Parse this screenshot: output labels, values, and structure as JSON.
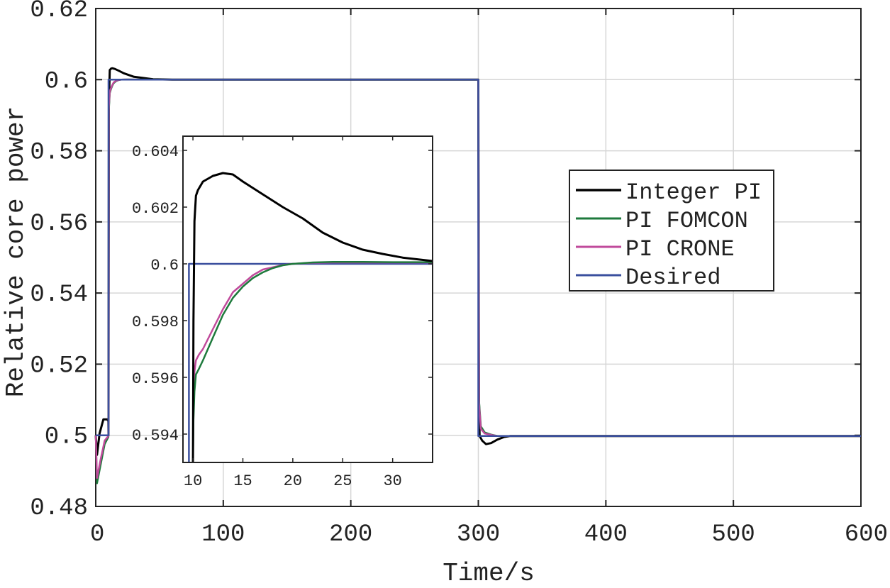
{
  "chart_data": [
    {
      "type": "line",
      "title": "",
      "xlabel": "Time/s",
      "ylabel": "Relative core power",
      "xlim": [
        0,
        600
      ],
      "ylim": [
        0.48,
        0.62
      ],
      "xticks": [
        0,
        100,
        200,
        300,
        400,
        500,
        600
      ],
      "yticks": [
        0.48,
        0.5,
        0.52,
        0.54,
        0.56,
        0.58,
        0.6,
        0.62
      ],
      "xtick_labels": [
        "0",
        "100",
        "200",
        "300",
        "400",
        "500",
        "600"
      ],
      "ytick_labels": [
        "0.48",
        "0.5",
        "0.52",
        "0.54",
        "0.56",
        "0.58",
        "0.6",
        "0.62"
      ],
      "grid": true,
      "legend_position": "right",
      "series": [
        {
          "name": "Integer PI",
          "color": "#000000",
          "x": [
            0,
            1,
            3,
            6,
            9,
            9.9,
            10,
            10.3,
            11,
            12,
            13,
            15,
            18,
            22,
            30,
            45,
            60,
            299.9,
            300,
            300.5,
            301,
            303,
            306,
            310,
            315,
            320,
            325,
            600
          ],
          "y": [
            0.5,
            0.4945,
            0.5005,
            0.5045,
            0.5045,
            0.504,
            0.5,
            0.593,
            0.6027,
            0.6031,
            0.6032,
            0.603,
            0.6025,
            0.6018,
            0.6008,
            0.6001,
            0.6,
            0.6,
            0.6,
            0.51,
            0.4998,
            0.4985,
            0.4975,
            0.4978,
            0.4988,
            0.4995,
            0.4998,
            0.4998
          ]
        },
        {
          "name": "PI FOMCON",
          "color": "#1e7a3c",
          "x": [
            0,
            1,
            4,
            7,
            9.9,
            10,
            10.3,
            11,
            12,
            13,
            14,
            16,
            18,
            20,
            22,
            25,
            30,
            35,
            60,
            299.9,
            300,
            300.5,
            302,
            305,
            310,
            315,
            600
          ],
          "y": [
            0.5,
            0.4865,
            0.492,
            0.4975,
            0.4995,
            0.5,
            0.5915,
            0.5962,
            0.5974,
            0.5983,
            0.599,
            0.5996,
            0.5999,
            0.6,
            0.60004,
            0.60005,
            0.60004,
            0.60003,
            0.6,
            0.6,
            0.6,
            0.51,
            0.5025,
            0.5008,
            0.5002,
            0.4998,
            0.4998
          ]
        },
        {
          "name": "PI CRONE",
          "color": "#c04a9b",
          "x": [
            0,
            1,
            4,
            7,
            9.9,
            10,
            10.3,
            11,
            12,
            13,
            14,
            16,
            18,
            20,
            22,
            25,
            30,
            35,
            60,
            299.9,
            300,
            300.5,
            302,
            305,
            310,
            315,
            600
          ],
          "y": [
            0.5,
            0.488,
            0.4935,
            0.4985,
            0.4998,
            0.5,
            0.5925,
            0.5966,
            0.5977,
            0.5985,
            0.5992,
            0.5997,
            0.5999,
            0.6,
            0.60003,
            0.60004,
            0.60003,
            0.60002,
            0.6,
            0.6,
            0.6,
            0.509,
            0.5018,
            0.5005,
            0.5001,
            0.4998,
            0.4998
          ]
        },
        {
          "name": "Desired",
          "color": "#3a4f9e",
          "x": [
            0,
            10,
            10,
            300,
            300,
            600
          ],
          "y": [
            0.5,
            0.5,
            0.6,
            0.6,
            0.4998,
            0.4998
          ]
        }
      ]
    },
    {
      "type": "line",
      "title": "",
      "xlabel": "",
      "ylabel": "",
      "xlim": [
        9,
        34
      ],
      "ylim": [
        0.593,
        0.6045
      ],
      "xticks": [
        10,
        15,
        20,
        25,
        30
      ],
      "yticks": [
        0.594,
        0.596,
        0.598,
        0.6,
        0.602,
        0.604
      ],
      "xtick_labels": [
        "10",
        "15",
        "20",
        "25",
        "30"
      ],
      "ytick_labels": [
        "0.594",
        "0.596",
        "0.598",
        "0.6",
        "0.602",
        "0.604"
      ],
      "grid": false,
      "series": [
        {
          "name": "Integer PI",
          "color": "#000000",
          "x": [
            10,
            10.05,
            10.15,
            10.3,
            10.5,
            11,
            12,
            13,
            14,
            15,
            17,
            19,
            21,
            23,
            25,
            27,
            29,
            31,
            34
          ],
          "y": [
            0.593,
            0.598,
            0.6015,
            0.6024,
            0.6026,
            0.6029,
            0.6031,
            0.6032,
            0.60315,
            0.6029,
            0.60245,
            0.602,
            0.6016,
            0.6011,
            0.60075,
            0.6005,
            0.60035,
            0.60022,
            0.6001
          ]
        },
        {
          "name": "PI FOMCON",
          "color": "#1e7a3c",
          "x": [
            10,
            10.05,
            10.15,
            10.3,
            10.6,
            11,
            12,
            13,
            14,
            15,
            16,
            17,
            18,
            19,
            20,
            22,
            24,
            27,
            30,
            34
          ],
          "y": [
            0.593,
            0.5945,
            0.5955,
            0.5961,
            0.5963,
            0.5966,
            0.5974,
            0.5982,
            0.5988,
            0.5992,
            0.5995,
            0.5997,
            0.59985,
            0.59995,
            0.6,
            0.60005,
            0.60007,
            0.60007,
            0.60006,
            0.60006
          ]
        },
        {
          "name": "PI CRONE",
          "color": "#c04a9b",
          "x": [
            10,
            10.05,
            10.15,
            10.3,
            10.6,
            11,
            12,
            13,
            14,
            15,
            16,
            17,
            18,
            19,
            20,
            22,
            24,
            27,
            30,
            34
          ],
          "y": [
            0.593,
            0.5952,
            0.5962,
            0.5966,
            0.5968,
            0.597,
            0.5977,
            0.5984,
            0.599,
            0.5993,
            0.5996,
            0.5998,
            0.59988,
            0.59996,
            0.6,
            0.60004,
            0.60005,
            0.60005,
            0.60005,
            0.60005
          ]
        },
        {
          "name": "Desired",
          "color": "#3a4f9e",
          "x": [
            9.6,
            9.6,
            34
          ],
          "y": [
            0.593,
            0.6,
            0.6
          ]
        }
      ]
    }
  ]
}
